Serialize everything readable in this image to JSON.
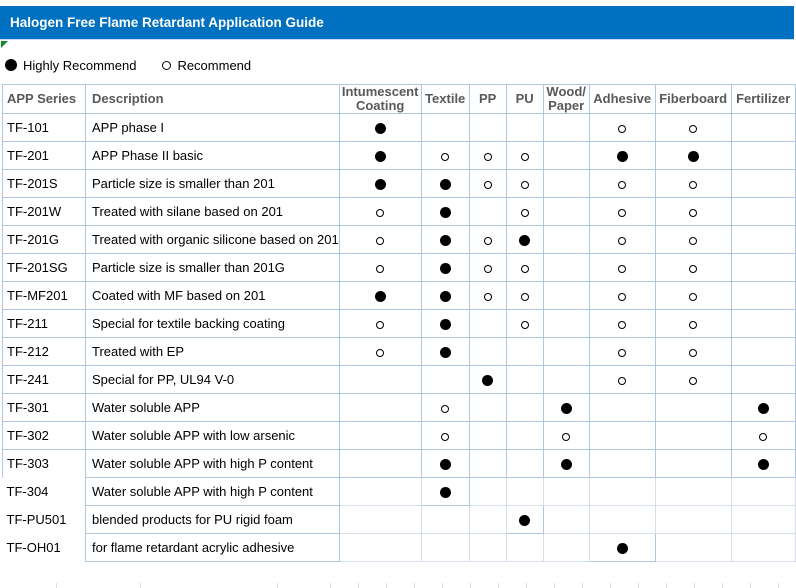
{
  "title": "Halogen Free Flame Retardant Application Guide",
  "legend": {
    "highly_recommend": "Highly Recommend",
    "recommend": "Recommend"
  },
  "colors": {
    "title_bar": "#0071C1",
    "table_border": "#AFC7E0",
    "faint_gridline": "#D6DEE9",
    "header_text": "#595959",
    "marker": "#000000",
    "flag_triangle": "#0E8A26"
  },
  "marker_meaning": {
    "H": "Highly Recommend (filled circle)",
    "R": "Recommend (open circle)"
  },
  "table": {
    "headers": [
      "APP Series",
      "Description",
      "Intumescent\nCoating",
      "Textile",
      "PP",
      "PU",
      "Wood/\nPaper",
      "Adhesive",
      "Fiberboard",
      "Fertilizer"
    ],
    "rows": [
      {
        "series": "TF-101",
        "description": "APP phase I",
        "marks": [
          "H",
          "",
          "",
          "",
          "",
          "R",
          "R",
          ""
        ]
      },
      {
        "series": "TF-201",
        "description": "APP Phase II basic",
        "marks": [
          "H",
          "R",
          "R",
          "R",
          "",
          "H",
          "H",
          ""
        ]
      },
      {
        "series": "TF-201S",
        "description": "Particle size is smaller than 201",
        "marks": [
          "H",
          "H",
          "R",
          "R",
          "",
          "R",
          "R",
          ""
        ]
      },
      {
        "series": "TF-201W",
        "description": "Treated with silane based on 201",
        "marks": [
          "R",
          "H",
          "",
          "R",
          "",
          "R",
          "R",
          ""
        ]
      },
      {
        "series": "TF-201G",
        "description": "Treated with organic silicone based on 201",
        "marks": [
          "R",
          "H",
          "R",
          "H",
          "",
          "R",
          "R",
          ""
        ]
      },
      {
        "series": "TF-201SG",
        "description": "Particle size is smaller than 201G",
        "marks": [
          "R",
          "H",
          "R",
          "R",
          "",
          "R",
          "R",
          ""
        ]
      },
      {
        "series": "TF-MF201",
        "description": "Coated with MF based on 201",
        "marks": [
          "H",
          "H",
          "R",
          "R",
          "",
          "R",
          "R",
          ""
        ]
      },
      {
        "series": "TF-211",
        "description": "Special for textile backing coating",
        "marks": [
          "R",
          "H",
          "",
          "R",
          "",
          "R",
          "R",
          ""
        ]
      },
      {
        "series": "TF-212",
        "description": "Treated with EP",
        "marks": [
          "R",
          "H",
          "",
          "",
          "",
          "R",
          "R",
          ""
        ]
      },
      {
        "series": "TF-241",
        "description": "Special for PP, UL94 V-0",
        "marks": [
          "",
          "",
          "H",
          "",
          "",
          "R",
          "R",
          ""
        ]
      },
      {
        "series": "TF-301",
        "description": "Water soluble APP",
        "marks": [
          "",
          "R",
          "",
          "",
          "H",
          "",
          "",
          "H"
        ]
      },
      {
        "series": "TF-302",
        "description": "Water soluble APP with low arsenic",
        "marks": [
          "",
          "R",
          "",
          "",
          "R",
          "",
          "",
          "R"
        ]
      },
      {
        "series": "TF-303",
        "description": "Water soluble APP with high P content",
        "marks": [
          "",
          "H",
          "",
          "",
          "H",
          "",
          "",
          "H"
        ]
      },
      {
        "series": "TF-304",
        "description": "Water soluble APP with high P content",
        "marks": [
          "",
          "H",
          "",
          "",
          "",
          "",
          "",
          ""
        ]
      },
      {
        "series": "TF-PU501",
        "description": "blended products for PU rigid foam",
        "marks": [
          "",
          "",
          "",
          "H",
          "",
          "",
          "",
          ""
        ]
      },
      {
        "series": "TF-OH01",
        "description": "for flame retardant acrylic adhesive",
        "marks": [
          "",
          "",
          "",
          "",
          "",
          "H",
          "",
          ""
        ]
      }
    ]
  }
}
